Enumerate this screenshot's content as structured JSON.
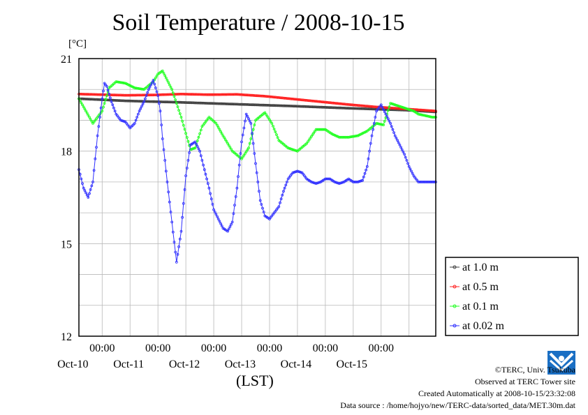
{
  "chart_data": {
    "type": "line",
    "title": "Soil Temperature / 2008-10-15",
    "ylabel": "[°C]",
    "xlabel": "(LST)",
    "ylim": [
      12,
      21
    ],
    "yticks": [
      "21",
      "18",
      "15",
      "12"
    ],
    "xlim": [
      "2008-10-09 14:00",
      "2008-10-15 23:30"
    ],
    "xticks": [
      {
        "time": "00:00",
        "date": "Oct-10"
      },
      {
        "time": "00:00",
        "date": "Oct-11"
      },
      {
        "time": "00:00",
        "date": "Oct-12"
      },
      {
        "time": "00:00",
        "date": "Oct-13"
      },
      {
        "time": "00:00",
        "date": "Oct-14"
      },
      {
        "time": "00:00",
        "date": "Oct-15"
      }
    ],
    "grid": true,
    "legend_position": "right",
    "series": [
      {
        "name": "at 1.0 m",
        "color": "#404040",
        "x": [
          -10,
          10,
          34,
          58,
          82,
          106,
          130,
          143.5
        ],
        "values": [
          19.7,
          19.63,
          19.58,
          19.52,
          19.46,
          19.39,
          19.33,
          19.27
        ]
      },
      {
        "name": "at 0.5 m",
        "color": "#ff2020",
        "x": [
          -10,
          0,
          10,
          22,
          34,
          46,
          58,
          70,
          82,
          94,
          106,
          118,
          130,
          143.5
        ],
        "values": [
          19.85,
          19.83,
          19.81,
          19.82,
          19.85,
          19.83,
          19.84,
          19.78,
          19.69,
          19.6,
          19.51,
          19.43,
          19.37,
          19.3
        ]
      },
      {
        "name": "at 0.1 m",
        "color": "#20ff20",
        "x": [
          -10,
          -4,
          0,
          3,
          6,
          10,
          14,
          18,
          22,
          24,
          26,
          30,
          34,
          38,
          40,
          43,
          46,
          49,
          52,
          56,
          60,
          63,
          66,
          70,
          73,
          76,
          80,
          84,
          88,
          92,
          96,
          99,
          102,
          106,
          110,
          114,
          118,
          121,
          124,
          126,
          128,
          130,
          134,
          136,
          139,
          142,
          143.5
        ],
        "values": [
          19.7,
          18.9,
          19.3,
          20.05,
          20.25,
          20.2,
          20.05,
          20.0,
          20.25,
          20.5,
          20.6,
          20.0,
          19.1,
          18.05,
          18.1,
          18.8,
          19.1,
          18.9,
          18.5,
          18.0,
          17.75,
          18.1,
          19.0,
          19.25,
          18.9,
          18.35,
          18.1,
          18.0,
          18.25,
          18.7,
          18.7,
          18.55,
          18.45,
          18.45,
          18.5,
          18.65,
          18.9,
          18.85,
          19.55,
          19.5,
          19.45,
          19.4,
          19.3,
          19.2,
          19.15,
          19.1,
          19.1
        ]
      },
      {
        "name": "at 0.02 m",
        "color": "#3030ff",
        "x": [
          -10,
          -8,
          -6,
          -4,
          -2,
          0,
          1,
          2,
          4,
          6,
          8,
          10,
          12,
          14,
          16,
          18,
          20,
          22,
          24,
          25,
          26,
          28,
          30,
          32,
          34,
          36,
          38,
          40,
          42,
          44,
          46,
          48,
          50,
          52,
          54,
          56,
          58,
          60,
          62,
          64,
          66,
          68,
          70,
          72,
          74,
          76,
          78,
          80,
          82,
          84,
          86,
          88,
          90,
          92,
          94,
          96,
          98,
          100,
          102,
          104,
          106,
          108,
          110,
          112,
          114,
          116,
          118,
          120,
          122,
          124,
          126,
          128,
          130,
          132,
          134,
          136,
          138,
          140,
          142,
          143.5
        ],
        "values": [
          17.4,
          16.8,
          16.5,
          17.0,
          18.5,
          19.7,
          20.2,
          20.1,
          19.6,
          19.2,
          19.0,
          18.95,
          18.75,
          18.9,
          19.3,
          19.6,
          20.0,
          20.3,
          19.8,
          19.3,
          18.4,
          17.0,
          15.7,
          14.4,
          15.4,
          17.2,
          18.2,
          18.3,
          18.0,
          17.4,
          16.8,
          16.1,
          15.8,
          15.5,
          15.4,
          15.7,
          16.8,
          18.3,
          19.2,
          18.9,
          17.6,
          16.4,
          15.9,
          15.8,
          16.0,
          16.2,
          16.7,
          17.1,
          17.3,
          17.35,
          17.3,
          17.1,
          17.0,
          16.95,
          17.0,
          17.1,
          17.1,
          17.0,
          16.95,
          17.0,
          17.1,
          17.0,
          17.0,
          17.05,
          17.5,
          18.5,
          19.3,
          19.5,
          19.2,
          18.9,
          18.5,
          18.2,
          17.9,
          17.5,
          17.2,
          17.0,
          17.0,
          17.0,
          17.0,
          17.0
        ]
      }
    ]
  },
  "credits": {
    "copyright": "©TERC, Univ. Tsukuba",
    "site": "Observed at TERC Tower site",
    "created": "Created Automatically at 2008-10-15/23:32:08",
    "source": "Data source : /home/hojyo/new/TERC-data/sorted_data/MET.30m.dat"
  },
  "logo": {
    "text": "TERC",
    "color": "#1a6fc4"
  }
}
